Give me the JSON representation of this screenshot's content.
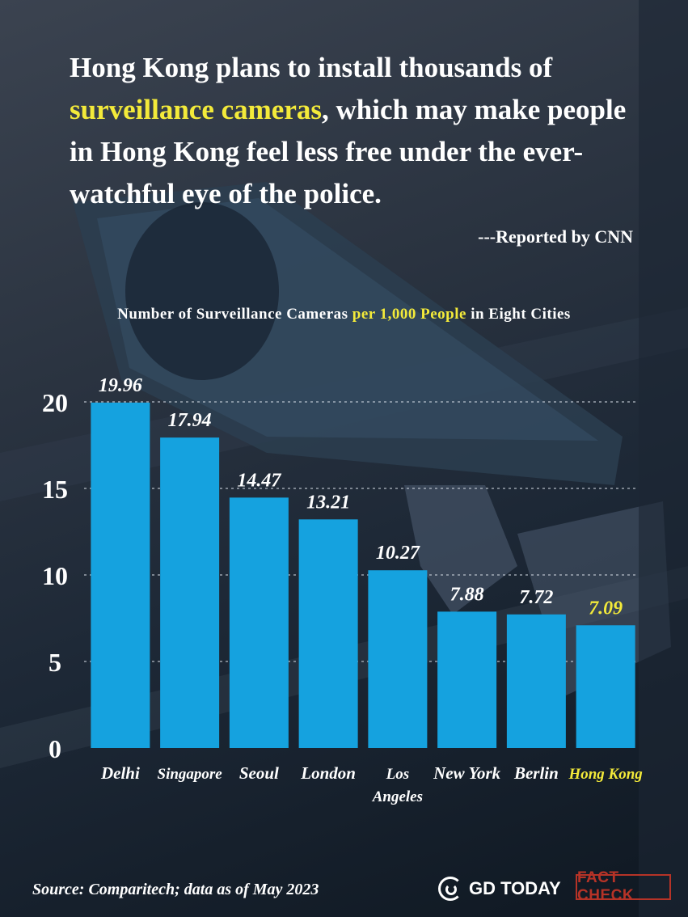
{
  "headline": {
    "before": "Hong Kong plans to install thousands of ",
    "highlight": "surveillance cameras",
    "after": ", which may make people in Hong Kong feel less free under the ever-watchful eye of the police."
  },
  "credit": "---Reported by CNN",
  "subtitle": {
    "part1": "Number of Surveillance Cameras ",
    "highlight": "per 1,000 People",
    "part2": " in Eight Cities"
  },
  "colors": {
    "bar": "#15a2df",
    "highlight": "#f3ea3a",
    "text": "#ffffff",
    "grid": "#cfd6df"
  },
  "chart_data": {
    "type": "bar",
    "title": "Number of Surveillance Cameras per 1,000 People in Eight Cities",
    "categories": [
      "Delhi",
      "Singapore",
      "Seoul",
      "London",
      "Los Angeles",
      "New York",
      "Berlin",
      "Hong Kong"
    ],
    "values": [
      19.96,
      17.94,
      14.47,
      13.21,
      10.27,
      7.88,
      7.72,
      7.09
    ],
    "value_labels": [
      "19.96",
      "17.94",
      "14.47",
      "13.21",
      "10.27",
      "7.88",
      "7.72",
      "7.09"
    ],
    "highlighted_category": "Hong Kong",
    "yticks": [
      0,
      5,
      10,
      15,
      20
    ],
    "ylim": [
      0,
      20
    ],
    "grid": true,
    "xlabel": "",
    "ylabel": ""
  },
  "source": "Source: Comparitech; data as of May 2023",
  "logo": {
    "icon": "gd-today-logo-icon",
    "text": "GD TODAY"
  },
  "stamp": "FACT CHECK"
}
